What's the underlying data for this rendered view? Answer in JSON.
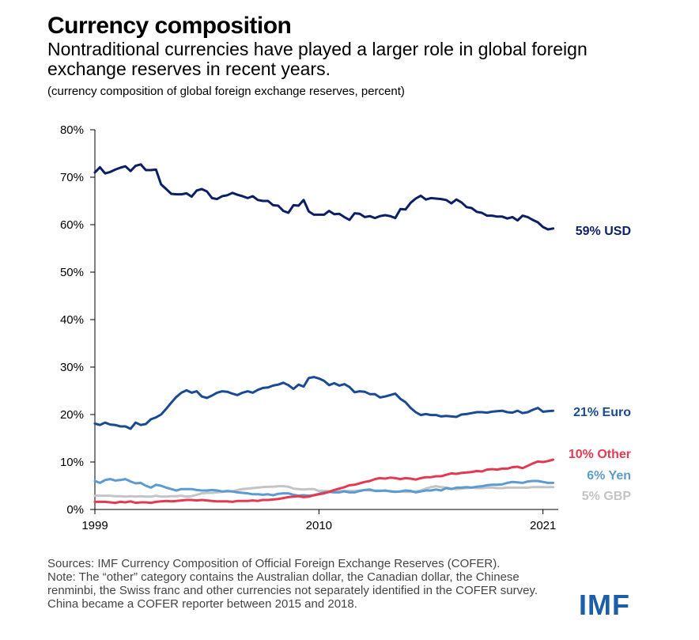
{
  "header": {
    "title": "Currency composition",
    "subtitle": "Nontraditional currencies have played a larger role in global foreign exchange reserves in recent years.",
    "note": "(currency composition of global foreign exchange reserves, percent)"
  },
  "footer": {
    "sources": "Sources: IMF Currency Composition of Official Foreign Exchange Reserves (COFER).",
    "note": "Note: The “other” category contains the Australian dollar, the Canadian dollar, the Chinese renminbi, the Swiss franc and other currencies not separately identified in the COFER survey. China became a COFER reporter between 2015 and 2018.",
    "logo": "IMF"
  },
  "chart_data": {
    "type": "line",
    "ylim": [
      0,
      80
    ],
    "yticks": [
      0,
      10,
      20,
      30,
      40,
      50,
      60,
      70,
      80
    ],
    "ytick_labels": [
      "0%",
      "10%",
      "20%",
      "30%",
      "40%",
      "50%",
      "60%",
      "70%",
      "80%"
    ],
    "xlim": [
      1999,
      2021.75
    ],
    "xticks": [
      1999,
      2010,
      2021
    ],
    "xtick_labels": [
      "1999",
      "2010",
      "2021"
    ],
    "grid": false,
    "series": [
      {
        "name": "USD",
        "label": "59% USD",
        "color": "#0b1f66",
        "x": [
          1999,
          1999.25,
          1999.5,
          1999.75,
          2000,
          2000.25,
          2000.5,
          2000.75,
          2001,
          2001.25,
          2001.5,
          2001.75,
          2002,
          2002.25,
          2002.5,
          2002.75,
          2003,
          2003.25,
          2003.5,
          2003.75,
          2004,
          2004.25,
          2004.5,
          2004.75,
          2005,
          2005.25,
          2005.5,
          2005.75,
          2006,
          2006.25,
          2006.5,
          2006.75,
          2007,
          2007.25,
          2007.5,
          2007.75,
          2008,
          2008.25,
          2008.5,
          2008.75,
          2009,
          2009.25,
          2009.5,
          2009.75,
          2010,
          2010.25,
          2010.5,
          2010.75,
          2011,
          2011.25,
          2011.5,
          2011.75,
          2012,
          2012.25,
          2012.5,
          2012.75,
          2013,
          2013.25,
          2013.5,
          2013.75,
          2014,
          2014.25,
          2014.5,
          2014.75,
          2015,
          2015.25,
          2015.5,
          2015.75,
          2016,
          2016.25,
          2016.5,
          2016.75,
          2017,
          2017.25,
          2017.5,
          2017.75,
          2018,
          2018.25,
          2018.5,
          2018.75,
          2019,
          2019.25,
          2019.5,
          2019.75,
          2020,
          2020.25,
          2020.5,
          2020.75,
          2021,
          2021.25,
          2021.5
        ],
        "values": [
          71.0,
          72.1,
          70.8,
          71.1,
          71.6,
          72.0,
          72.3,
          71.3,
          72.4,
          72.7,
          71.5,
          71.5,
          71.6,
          68.5,
          67.5,
          66.5,
          66.4,
          66.4,
          66.6,
          65.9,
          67.2,
          67.5,
          67.0,
          65.6,
          65.4,
          66.0,
          66.2,
          66.7,
          66.3,
          66.0,
          65.6,
          66.0,
          65.2,
          65.0,
          65.0,
          64.1,
          64.0,
          62.9,
          62.5,
          64.1,
          64.0,
          65.2,
          62.8,
          62.1,
          62.1,
          62.1,
          62.9,
          62.2,
          62.3,
          61.6,
          61.0,
          62.4,
          62.3,
          61.6,
          61.8,
          61.4,
          61.8,
          62.0,
          61.8,
          61.4,
          63.3,
          63.2,
          64.6,
          65.5,
          66.1,
          65.3,
          65.6,
          65.5,
          65.4,
          65.2,
          64.5,
          65.3,
          64.7,
          63.7,
          63.5,
          62.7,
          62.5,
          61.9,
          61.9,
          61.7,
          61.7,
          61.3,
          61.6,
          60.9,
          61.9,
          61.6,
          61.0,
          60.5,
          59.5,
          59.0,
          59.2
        ]
      },
      {
        "name": "Euro",
        "label": "21% Euro",
        "color": "#1a4a93",
        "x": [
          1999,
          1999.25,
          1999.5,
          1999.75,
          2000,
          2000.25,
          2000.5,
          2000.75,
          2001,
          2001.25,
          2001.5,
          2001.75,
          2002,
          2002.25,
          2002.5,
          2002.75,
          2003,
          2003.25,
          2003.5,
          2003.75,
          2004,
          2004.25,
          2004.5,
          2004.75,
          2005,
          2005.25,
          2005.5,
          2005.75,
          2006,
          2006.25,
          2006.5,
          2006.75,
          2007,
          2007.25,
          2007.5,
          2007.75,
          2008,
          2008.25,
          2008.5,
          2008.75,
          2009,
          2009.25,
          2009.5,
          2009.75,
          2010,
          2010.25,
          2010.5,
          2010.75,
          2011,
          2011.25,
          2011.5,
          2011.75,
          2012,
          2012.25,
          2012.5,
          2012.75,
          2013,
          2013.25,
          2013.5,
          2013.75,
          2014,
          2014.25,
          2014.5,
          2014.75,
          2015,
          2015.25,
          2015.5,
          2015.75,
          2016,
          2016.25,
          2016.5,
          2016.75,
          2017,
          2017.25,
          2017.5,
          2017.75,
          2018,
          2018.25,
          2018.5,
          2018.75,
          2019,
          2019.25,
          2019.5,
          2019.75,
          2020,
          2020.25,
          2020.5,
          2020.75,
          2021,
          2021.25,
          2021.5
        ],
        "values": [
          18.1,
          17.8,
          18.3,
          17.9,
          17.8,
          17.5,
          17.5,
          17.0,
          18.3,
          17.8,
          18.0,
          19.0,
          19.4,
          20.0,
          21.2,
          22.5,
          23.7,
          24.6,
          25.1,
          24.6,
          24.9,
          23.8,
          23.5,
          24.0,
          24.6,
          24.9,
          24.8,
          24.4,
          24.1,
          24.6,
          24.9,
          24.6,
          25.2,
          25.6,
          25.7,
          26.1,
          26.3,
          26.7,
          26.2,
          25.4,
          26.3,
          25.9,
          27.7,
          27.9,
          27.6,
          27.1,
          26.2,
          26.6,
          26.1,
          26.4,
          25.8,
          24.7,
          24.9,
          24.8,
          24.3,
          24.3,
          23.6,
          23.8,
          24.1,
          24.4,
          23.3,
          22.6,
          21.4,
          20.5,
          19.9,
          20.1,
          19.9,
          19.9,
          19.6,
          19.7,
          19.6,
          19.5,
          20.0,
          20.1,
          20.3,
          20.5,
          20.5,
          20.4,
          20.6,
          20.7,
          20.8,
          20.5,
          20.4,
          20.8,
          20.3,
          20.5,
          21.0,
          21.4,
          20.6,
          20.7,
          20.8
        ]
      },
      {
        "name": "Other",
        "label": "10% Other",
        "color": "#e33a52",
        "x": [
          1999,
          1999.25,
          1999.5,
          1999.75,
          2000,
          2000.25,
          2000.5,
          2000.75,
          2001,
          2001.25,
          2001.5,
          2001.75,
          2002,
          2002.25,
          2002.5,
          2002.75,
          2003,
          2003.25,
          2003.5,
          2003.75,
          2004,
          2004.25,
          2004.5,
          2004.75,
          2005,
          2005.25,
          2005.5,
          2005.75,
          2006,
          2006.25,
          2006.5,
          2006.75,
          2007,
          2007.25,
          2007.5,
          2007.75,
          2008,
          2008.25,
          2008.5,
          2008.75,
          2009,
          2009.25,
          2009.5,
          2009.75,
          2010,
          2010.25,
          2010.5,
          2010.75,
          2011,
          2011.25,
          2011.5,
          2011.75,
          2012,
          2012.25,
          2012.5,
          2012.75,
          2013,
          2013.25,
          2013.5,
          2013.75,
          2014,
          2014.25,
          2014.5,
          2014.75,
          2015,
          2015.25,
          2015.5,
          2015.75,
          2016,
          2016.25,
          2016.5,
          2016.75,
          2017,
          2017.25,
          2017.5,
          2017.75,
          2018,
          2018.25,
          2018.5,
          2018.75,
          2019,
          2019.25,
          2019.5,
          2019.75,
          2020,
          2020.25,
          2020.5,
          2020.75,
          2021,
          2021.25,
          2021.5
        ],
        "values": [
          1.6,
          1.6,
          1.6,
          1.5,
          1.4,
          1.6,
          1.5,
          1.7,
          1.4,
          1.5,
          1.5,
          1.4,
          1.6,
          1.7,
          1.8,
          1.7,
          1.8,
          1.9,
          2.0,
          2.0,
          1.9,
          2.0,
          1.9,
          1.8,
          1.7,
          1.7,
          1.7,
          1.6,
          1.8,
          1.8,
          1.8,
          1.9,
          1.8,
          2.0,
          2.0,
          2.1,
          2.2,
          2.4,
          2.6,
          2.7,
          2.8,
          2.6,
          2.7,
          3.0,
          3.2,
          3.4,
          3.7,
          4.1,
          4.4,
          4.7,
          5.1,
          5.2,
          5.5,
          5.8,
          6.0,
          6.4,
          6.6,
          6.5,
          6.7,
          6.6,
          6.4,
          6.6,
          6.5,
          6.3,
          6.6,
          6.8,
          6.8,
          7.0,
          7.0,
          7.3,
          7.6,
          7.5,
          7.7,
          7.8,
          7.9,
          8.1,
          8.0,
          8.4,
          8.5,
          8.4,
          8.6,
          8.6,
          8.9,
          9.0,
          8.7,
          9.2,
          9.7,
          10.1,
          10.0,
          10.2,
          10.5
        ]
      },
      {
        "name": "Yen",
        "label": "6% Yen",
        "color": "#5b9bd1",
        "x": [
          1999,
          1999.25,
          1999.5,
          1999.75,
          2000,
          2000.25,
          2000.5,
          2000.75,
          2001,
          2001.25,
          2001.5,
          2001.75,
          2002,
          2002.25,
          2002.5,
          2002.75,
          2003,
          2003.25,
          2003.5,
          2003.75,
          2004,
          2004.25,
          2004.5,
          2004.75,
          2005,
          2005.25,
          2005.5,
          2005.75,
          2006,
          2006.25,
          2006.5,
          2006.75,
          2007,
          2007.25,
          2007.5,
          2007.75,
          2008,
          2008.25,
          2008.5,
          2008.75,
          2009,
          2009.25,
          2009.5,
          2009.75,
          2010,
          2010.25,
          2010.5,
          2010.75,
          2011,
          2011.25,
          2011.5,
          2011.75,
          2012,
          2012.25,
          2012.5,
          2012.75,
          2013,
          2013.25,
          2013.5,
          2013.75,
          2014,
          2014.25,
          2014.5,
          2014.75,
          2015,
          2015.25,
          2015.5,
          2015.75,
          2016,
          2016.25,
          2016.5,
          2016.75,
          2017,
          2017.25,
          2017.5,
          2017.75,
          2018,
          2018.25,
          2018.5,
          2018.75,
          2019,
          2019.25,
          2019.5,
          2019.75,
          2020,
          2020.25,
          2020.5,
          2020.75,
          2021,
          2021.25,
          2021.5
        ],
        "values": [
          6.0,
          5.6,
          6.2,
          6.4,
          6.1,
          6.2,
          6.4,
          5.9,
          5.5,
          5.6,
          5.0,
          4.6,
          5.2,
          5.0,
          4.6,
          4.3,
          4.0,
          4.3,
          4.3,
          4.3,
          4.1,
          4.0,
          4.0,
          4.1,
          4.0,
          3.8,
          3.9,
          3.8,
          3.6,
          3.5,
          3.4,
          3.2,
          3.2,
          3.1,
          3.2,
          3.0,
          3.3,
          3.4,
          3.4,
          3.1,
          2.9,
          3.0,
          2.9,
          3.0,
          3.3,
          3.6,
          3.7,
          3.6,
          3.6,
          3.8,
          3.6,
          3.6,
          3.9,
          4.1,
          4.2,
          3.9,
          3.9,
          4.0,
          3.8,
          3.7,
          3.8,
          4.0,
          3.9,
          3.6,
          3.8,
          4.0,
          4.0,
          4.2,
          4.0,
          4.5,
          4.3,
          4.6,
          4.6,
          4.7,
          4.6,
          4.8,
          4.9,
          5.1,
          5.2,
          5.2,
          5.3,
          5.6,
          5.8,
          5.7,
          5.6,
          5.9,
          6.0,
          6.0,
          5.8,
          5.6,
          5.6
        ]
      },
      {
        "name": "GBP",
        "label": "5% GBP",
        "color": "#c4c4c6",
        "x": [
          1999,
          1999.25,
          1999.5,
          1999.75,
          2000,
          2000.25,
          2000.5,
          2000.75,
          2001,
          2001.25,
          2001.5,
          2001.75,
          2002,
          2002.25,
          2002.5,
          2002.75,
          2003,
          2003.25,
          2003.5,
          2003.75,
          2004,
          2004.25,
          2004.5,
          2004.75,
          2005,
          2005.25,
          2005.5,
          2005.75,
          2006,
          2006.25,
          2006.5,
          2006.75,
          2007,
          2007.25,
          2007.5,
          2007.75,
          2008,
          2008.25,
          2008.5,
          2008.75,
          2009,
          2009.25,
          2009.5,
          2009.75,
          2010,
          2010.25,
          2010.5,
          2010.75,
          2011,
          2011.25,
          2011.5,
          2011.75,
          2012,
          2012.25,
          2012.5,
          2012.75,
          2013,
          2013.25,
          2013.5,
          2013.75,
          2014,
          2014.25,
          2014.5,
          2014.75,
          2015,
          2015.25,
          2015.5,
          2015.75,
          2016,
          2016.25,
          2016.5,
          2016.75,
          2017,
          2017.25,
          2017.5,
          2017.75,
          2018,
          2018.25,
          2018.5,
          2018.75,
          2019,
          2019.25,
          2019.5,
          2019.75,
          2020,
          2020.25,
          2020.5,
          2020.75,
          2021,
          2021.25,
          2021.5
        ],
        "values": [
          2.9,
          2.9,
          2.9,
          2.9,
          2.8,
          2.8,
          2.7,
          2.8,
          2.7,
          2.8,
          2.7,
          2.7,
          2.9,
          2.7,
          2.7,
          2.8,
          2.8,
          2.9,
          2.7,
          2.8,
          3.1,
          3.4,
          3.5,
          3.5,
          3.6,
          3.7,
          3.8,
          3.8,
          4.1,
          4.3,
          4.4,
          4.5,
          4.6,
          4.7,
          4.8,
          4.8,
          4.9,
          4.9,
          4.8,
          4.4,
          4.3,
          4.2,
          4.3,
          4.3,
          3.9,
          3.9,
          3.9,
          3.8,
          3.9,
          3.9,
          3.9,
          3.9,
          4.0,
          4.1,
          4.0,
          4.0,
          4.0,
          3.9,
          3.9,
          3.8,
          3.8,
          3.7,
          3.7,
          3.8,
          4.0,
          4.4,
          4.7,
          4.9,
          4.7,
          4.6,
          4.4,
          4.3,
          4.4,
          4.5,
          4.6,
          4.5,
          4.5,
          4.6,
          4.6,
          4.5,
          4.5,
          4.6,
          4.6,
          4.6,
          4.6,
          4.6,
          4.7,
          4.7,
          4.7,
          4.7,
          4.7
        ]
      }
    ]
  }
}
